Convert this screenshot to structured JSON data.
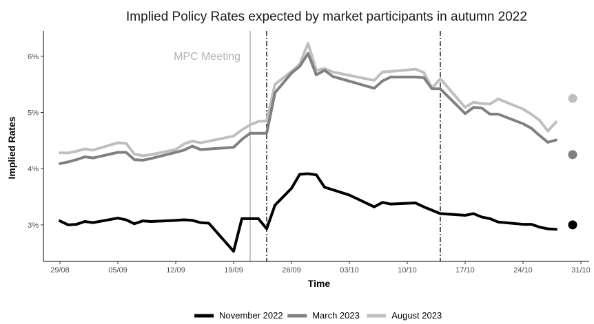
{
  "chart_data": {
    "type": "line",
    "title": "Implied Policy Rates expected by market participants in autumn 2022",
    "xlabel": "Time",
    "ylabel": "Implied Rates",
    "x_ticks": [
      "29/08",
      "05/09",
      "12/09",
      "19/09",
      "26/09",
      "03/10",
      "10/10",
      "17/10",
      "24/10",
      "31/10"
    ],
    "y_ticks": [
      "3%",
      "4%",
      "5%",
      "6%"
    ],
    "ylim": [
      2.35,
      6.45
    ],
    "xlim_dates": [
      "2022-08-27",
      "2022-11-01"
    ],
    "grid": false,
    "legend_position": "bottom",
    "annotations": [
      {
        "text": "MPC Meeting",
        "date": "2022-09-21",
        "color": "#b3b3b3"
      }
    ],
    "vlines": [
      {
        "date": "2022-09-21",
        "style": "solid",
        "color": "#b3b3b3"
      },
      {
        "date": "2022-09-23",
        "style": "dashdot",
        "color": "#000000"
      },
      {
        "date": "2022-10-14",
        "style": "dashdot",
        "color": "#000000"
      }
    ],
    "series": [
      {
        "name": "November 2022",
        "color": "#000000",
        "points": [
          [
            "2022-08-29",
            3.07
          ],
          [
            "2022-08-30",
            3.0
          ],
          [
            "2022-08-31",
            3.01
          ],
          [
            "2022-09-01",
            3.06
          ],
          [
            "2022-09-02",
            3.04
          ],
          [
            "2022-09-05",
            3.12
          ],
          [
            "2022-09-06",
            3.09
          ],
          [
            "2022-09-07",
            3.02
          ],
          [
            "2022-09-08",
            3.07
          ],
          [
            "2022-09-09",
            3.06
          ],
          [
            "2022-09-12",
            3.08
          ],
          [
            "2022-09-13",
            3.09
          ],
          [
            "2022-09-14",
            3.08
          ],
          [
            "2022-09-15",
            3.04
          ],
          [
            "2022-09-16",
            3.03
          ],
          [
            "2022-09-19",
            2.53
          ],
          [
            "2022-09-20",
            3.11
          ],
          [
            "2022-09-21",
            3.11
          ],
          [
            "2022-09-22",
            3.11
          ],
          [
            "2022-09-23",
            2.93
          ],
          [
            "2022-09-24",
            3.35
          ],
          [
            "2022-09-26",
            3.65
          ],
          [
            "2022-09-27",
            3.9
          ],
          [
            "2022-09-28",
            3.91
          ],
          [
            "2022-09-29",
            3.89
          ],
          [
            "2022-09-30",
            3.67
          ],
          [
            "2022-10-03",
            3.53
          ],
          [
            "2022-10-06",
            3.32
          ],
          [
            "2022-10-07",
            3.4
          ],
          [
            "2022-10-08",
            3.37
          ],
          [
            "2022-10-11",
            3.39
          ],
          [
            "2022-10-12",
            3.32
          ],
          [
            "2022-10-14",
            3.2
          ],
          [
            "2022-10-17",
            3.17
          ],
          [
            "2022-10-18",
            3.2
          ],
          [
            "2022-10-19",
            3.14
          ],
          [
            "2022-10-20",
            3.11
          ],
          [
            "2022-10-21",
            3.05
          ],
          [
            "2022-10-24",
            3.01
          ],
          [
            "2022-10-25",
            3.01
          ],
          [
            "2022-10-26",
            2.96
          ],
          [
            "2022-10-27",
            2.93
          ],
          [
            "2022-10-28",
            2.92
          ]
        ],
        "endpoint": [
          "2022-10-30",
          3.0
        ]
      },
      {
        "name": "March 2023",
        "color": "#808080",
        "points": [
          [
            "2022-08-29",
            4.09
          ],
          [
            "2022-08-30",
            4.12
          ],
          [
            "2022-08-31",
            4.16
          ],
          [
            "2022-09-01",
            4.21
          ],
          [
            "2022-09-02",
            4.19
          ],
          [
            "2022-09-05",
            4.29
          ],
          [
            "2022-09-06",
            4.29
          ],
          [
            "2022-09-07",
            4.16
          ],
          [
            "2022-09-08",
            4.15
          ],
          [
            "2022-09-09",
            4.18
          ],
          [
            "2022-09-12",
            4.29
          ],
          [
            "2022-09-13",
            4.33
          ],
          [
            "2022-09-14",
            4.4
          ],
          [
            "2022-09-15",
            4.34
          ],
          [
            "2022-09-16",
            4.35
          ],
          [
            "2022-09-19",
            4.38
          ],
          [
            "2022-09-20",
            4.52
          ],
          [
            "2022-09-21",
            4.63
          ],
          [
            "2022-09-22",
            4.63
          ],
          [
            "2022-09-23",
            4.63
          ],
          [
            "2022-09-24",
            5.35
          ],
          [
            "2022-09-26",
            5.7
          ],
          [
            "2022-09-27",
            5.82
          ],
          [
            "2022-09-28",
            6.05
          ],
          [
            "2022-09-29",
            5.67
          ],
          [
            "2022-09-30",
            5.75
          ],
          [
            "2022-10-01",
            5.64
          ],
          [
            "2022-10-06",
            5.43
          ],
          [
            "2022-10-07",
            5.56
          ],
          [
            "2022-10-08",
            5.63
          ],
          [
            "2022-10-11",
            5.63
          ],
          [
            "2022-10-12",
            5.62
          ],
          [
            "2022-10-13",
            5.42
          ],
          [
            "2022-10-14",
            5.42
          ],
          [
            "2022-10-17",
            4.98
          ],
          [
            "2022-10-18",
            5.09
          ],
          [
            "2022-10-19",
            5.08
          ],
          [
            "2022-10-20",
            4.97
          ],
          [
            "2022-10-21",
            4.97
          ],
          [
            "2022-10-24",
            4.8
          ],
          [
            "2022-10-25",
            4.72
          ],
          [
            "2022-10-26",
            4.59
          ],
          [
            "2022-10-27",
            4.47
          ],
          [
            "2022-10-28",
            4.51
          ]
        ],
        "endpoint": [
          "2022-10-30",
          4.25
        ]
      },
      {
        "name": "August 2023",
        "color": "#bfbfbf",
        "points": [
          [
            "2022-08-29",
            4.28
          ],
          [
            "2022-08-30",
            4.28
          ],
          [
            "2022-08-31",
            4.31
          ],
          [
            "2022-09-01",
            4.35
          ],
          [
            "2022-09-02",
            4.33
          ],
          [
            "2022-09-05",
            4.46
          ],
          [
            "2022-09-06",
            4.45
          ],
          [
            "2022-09-07",
            4.26
          ],
          [
            "2022-09-08",
            4.23
          ],
          [
            "2022-09-09",
            4.25
          ],
          [
            "2022-09-12",
            4.34
          ],
          [
            "2022-09-13",
            4.44
          ],
          [
            "2022-09-14",
            4.49
          ],
          [
            "2022-09-15",
            4.46
          ],
          [
            "2022-09-16",
            4.49
          ],
          [
            "2022-09-19",
            4.58
          ],
          [
            "2022-09-20",
            4.69
          ],
          [
            "2022-09-21",
            4.78
          ],
          [
            "2022-09-22",
            4.84
          ],
          [
            "2022-09-23",
            4.85
          ],
          [
            "2022-09-24",
            5.5
          ],
          [
            "2022-09-26",
            5.73
          ],
          [
            "2022-09-27",
            5.86
          ],
          [
            "2022-09-28",
            6.23
          ],
          [
            "2022-09-29",
            5.75
          ],
          [
            "2022-09-30",
            5.78
          ],
          [
            "2022-10-01",
            5.72
          ],
          [
            "2022-10-06",
            5.57
          ],
          [
            "2022-10-07",
            5.72
          ],
          [
            "2022-10-08",
            5.73
          ],
          [
            "2022-10-11",
            5.77
          ],
          [
            "2022-10-12",
            5.71
          ],
          [
            "2022-10-13",
            5.43
          ],
          [
            "2022-10-14",
            5.6
          ],
          [
            "2022-10-17",
            5.09
          ],
          [
            "2022-10-18",
            5.18
          ],
          [
            "2022-10-19",
            5.16
          ],
          [
            "2022-10-20",
            5.15
          ],
          [
            "2022-10-21",
            5.24
          ],
          [
            "2022-10-24",
            5.06
          ],
          [
            "2022-10-25",
            4.97
          ],
          [
            "2022-10-26",
            4.86
          ],
          [
            "2022-10-27",
            4.67
          ],
          [
            "2022-10-28",
            4.83
          ]
        ],
        "endpoint": [
          "2022-10-30",
          5.25
        ]
      }
    ]
  }
}
